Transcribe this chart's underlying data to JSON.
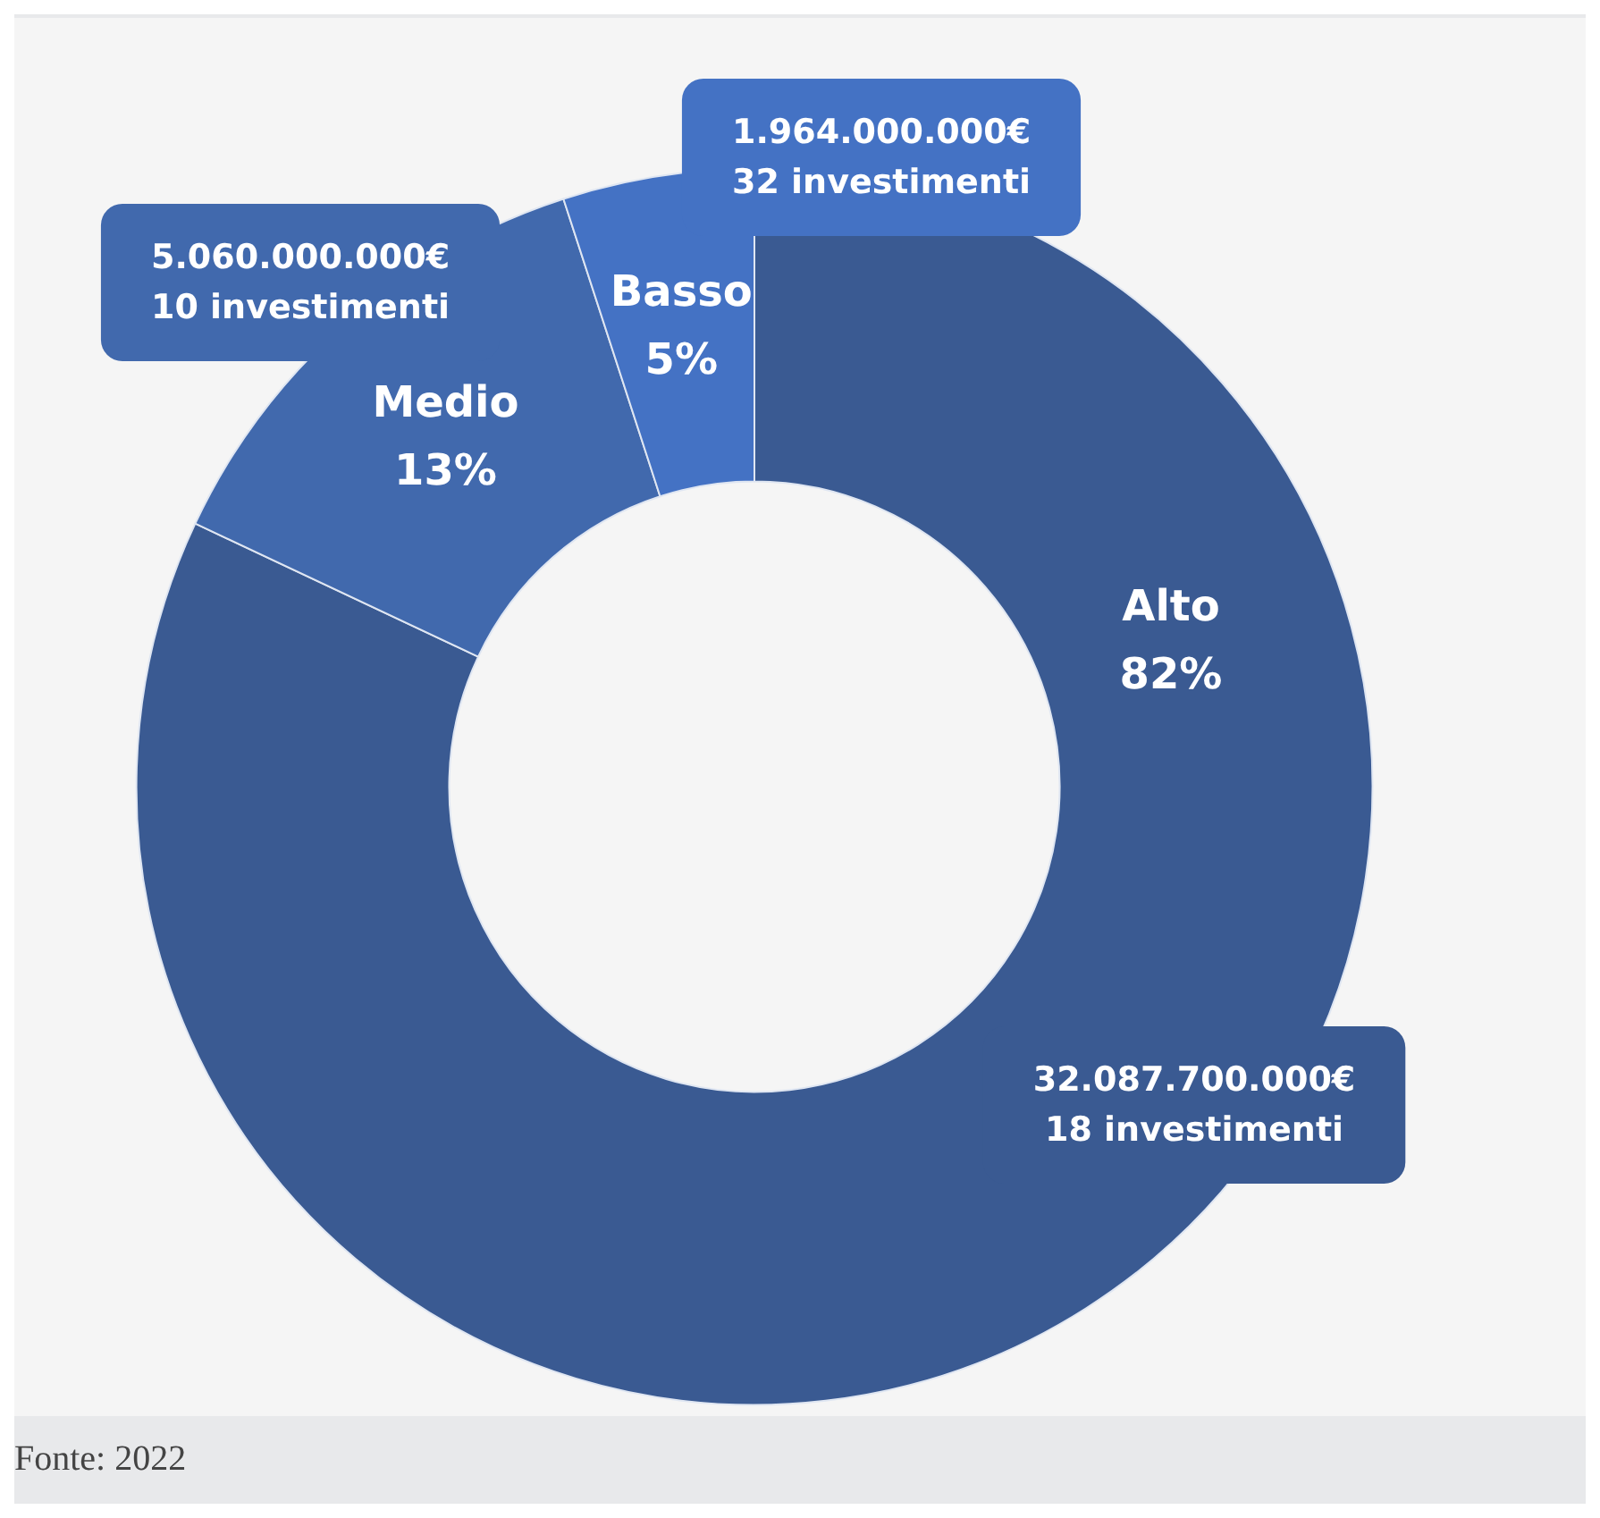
{
  "chart_data": {
    "type": "donut",
    "categories": [
      "Alto",
      "Medio",
      "Basso"
    ],
    "values": [
      82,
      13,
      5
    ],
    "value_labels": [
      "82%",
      "13%",
      "5%"
    ],
    "colors": [
      "#3a5a92",
      "#4169ad",
      "#4472c4"
    ],
    "legend": false,
    "annotations": [
      "32.087.700.000€\n18 investimenti",
      "5.060.000.000€\n10 investimenti",
      "1.964.000.000€\n32 investimenti",
      "Fonte: 2022"
    ]
  }
}
